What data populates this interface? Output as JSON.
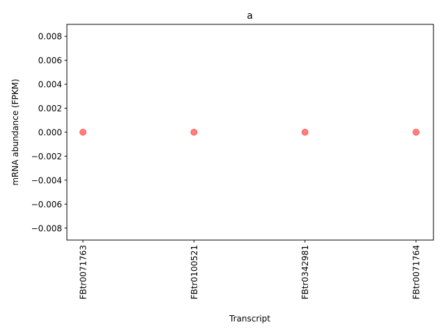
{
  "chart_data": {
    "type": "scatter",
    "title": "a",
    "xlabel": "Transcript",
    "ylabel": "mRNA abundance (FPKM)",
    "categories": [
      "FBtr0071763",
      "FBtr0100521",
      "FBtr0342981",
      "FBtr0071764"
    ],
    "values": [
      0.0,
      0.0,
      0.0,
      0.0
    ],
    "ylim": [
      -0.009,
      0.009
    ],
    "yticks": [
      -0.008,
      -0.006,
      -0.004,
      -0.002,
      0.0,
      0.002,
      0.004,
      0.006,
      0.008
    ],
    "ytick_labels": [
      "−0.008",
      "−0.006",
      "−0.004",
      "−0.002",
      "0.000",
      "0.002",
      "0.004",
      "0.006",
      "0.008"
    ],
    "grid": false,
    "legend": "none",
    "marker_color": "#ff0000",
    "marker_alpha": 0.5
  }
}
